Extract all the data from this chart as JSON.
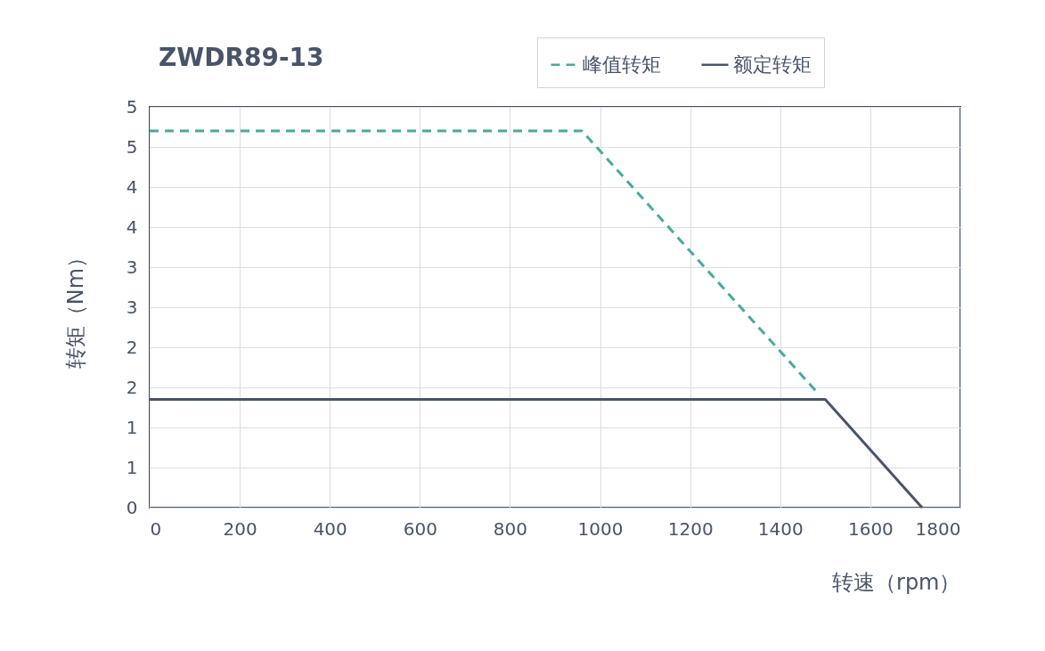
{
  "chart_data": {
    "type": "line",
    "title": "ZWDR89-13",
    "xlabel": "转速（rpm）",
    "ylabel": "转矩（Nm）",
    "xlim": [
      0,
      1800
    ],
    "xticks": [
      0,
      200,
      400,
      600,
      800,
      1000,
      1200,
      1400,
      1600,
      1800
    ],
    "ylim": [
      0,
      5
    ],
    "yticks": [
      0,
      {
        "value": 0.5,
        "label": "1"
      },
      1,
      {
        "value": 1.5,
        "label": "2"
      },
      2,
      {
        "value": 2.5,
        "label": "3"
      },
      3,
      {
        "value": 3.5,
        "label": "4"
      },
      4,
      {
        "value": 4.5,
        "label": "5"
      },
      5
    ],
    "grid": true,
    "legend": "top right",
    "series": [
      {
        "name": "峰值转矩",
        "color": "#4aa89a",
        "line_style": "dashed",
        "x": [
          0,
          960,
          1480
        ],
        "values": [
          4.7,
          4.7,
          1.45
        ]
      },
      {
        "name": "额定转矩",
        "color": "#4a5468",
        "line_style": "solid",
        "x": [
          0,
          1500,
          1715
        ],
        "values": [
          1.35,
          1.35,
          0
        ]
      }
    ]
  }
}
